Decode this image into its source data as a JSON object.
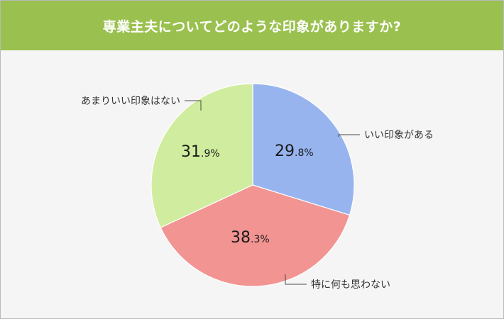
{
  "title": "専業主夫についてどのような印象がありますか?",
  "colors": {
    "header_bg": "#9ac04f",
    "panel_bg": "#f6f5f5"
  },
  "chart_data": {
    "type": "pie",
    "start": "12 o'clock",
    "direction": "clockwise",
    "slices": [
      {
        "label": "いい印象がある",
        "value": 29.8,
        "int_part": "29",
        "dec_part": ".8%",
        "color": "#97b4ee"
      },
      {
        "label": "特に何も思わない",
        "value": 38.3,
        "int_part": "38",
        "dec_part": ".3%",
        "color": "#f19492"
      },
      {
        "label": "あまりいい印象はない",
        "value": 31.9,
        "int_part": "31",
        "dec_part": ".9%",
        "color": "#d0ed9f"
      }
    ]
  }
}
